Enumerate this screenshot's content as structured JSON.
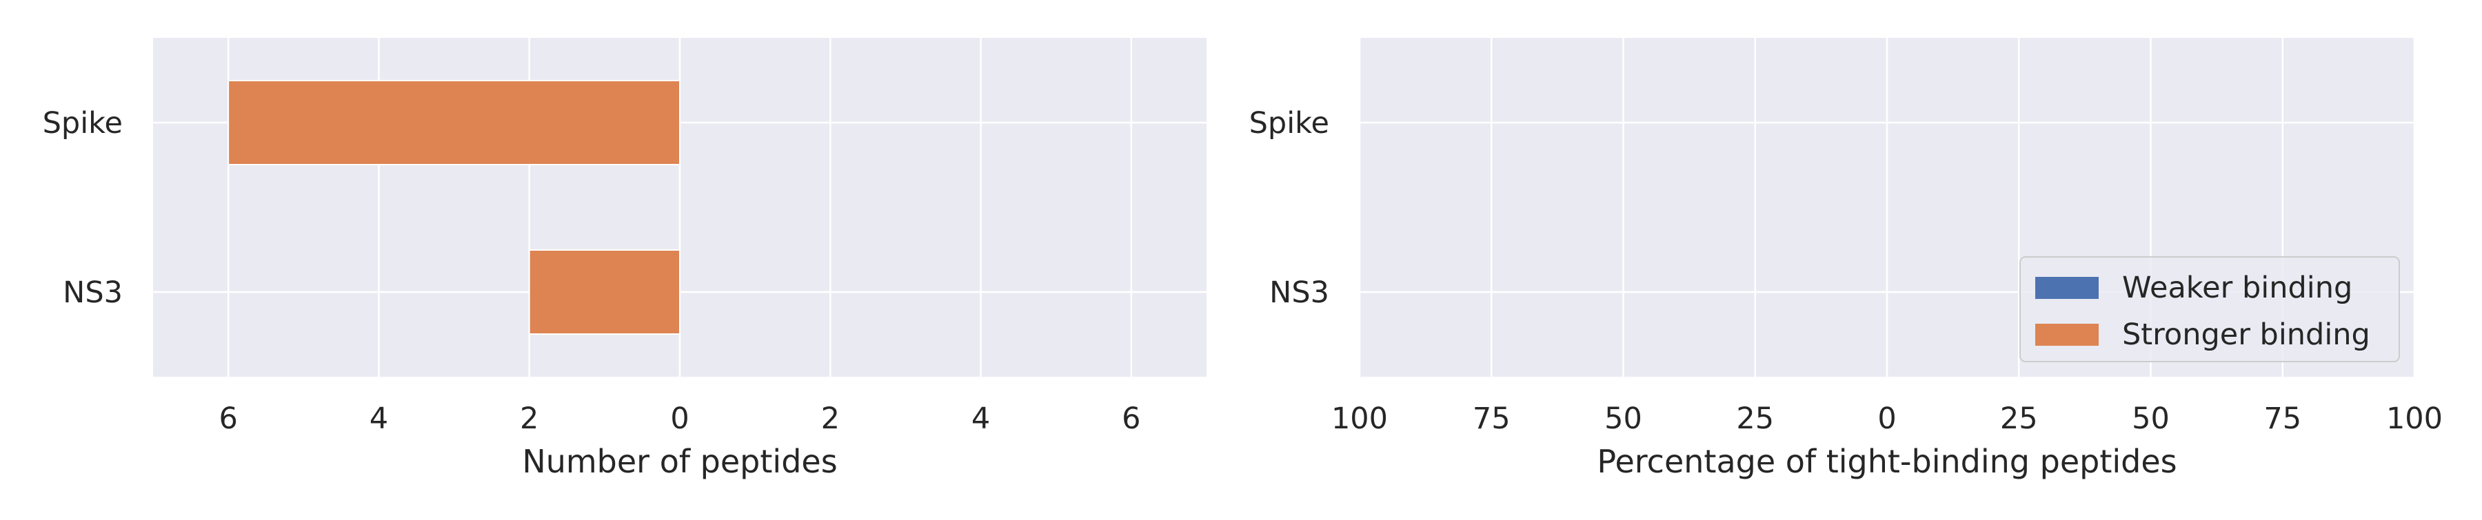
{
  "chart_data": [
    {
      "type": "bar",
      "orientation": "horizontal",
      "categories": [
        "Spike",
        "NS3"
      ],
      "series": [
        {
          "name": "Weaker binding",
          "color": "#4c72b0",
          "values": [
            0,
            0
          ]
        },
        {
          "name": "Stronger binding",
          "color": "#dd8452",
          "values": [
            -6,
            -2
          ]
        }
      ],
      "xlim": [
        -7,
        7
      ],
      "xticks": [
        -6,
        -4,
        -2,
        0,
        2,
        4,
        6
      ],
      "xtick_labels": [
        "6",
        "4",
        "2",
        "0",
        "2",
        "4",
        "6"
      ],
      "xlabel": "Number of peptides",
      "grid": true
    },
    {
      "type": "bar",
      "orientation": "horizontal",
      "categories": [
        "Spike",
        "NS3"
      ],
      "series": [
        {
          "name": "Weaker binding",
          "color": "#4c72b0",
          "values": [
            0,
            0
          ]
        },
        {
          "name": "Stronger binding",
          "color": "#dd8452",
          "values": [
            0,
            0
          ]
        }
      ],
      "xlim": [
        -100,
        100
      ],
      "xticks": [
        -100,
        -75,
        -50,
        -25,
        0,
        25,
        50,
        75,
        100
      ],
      "xtick_labels": [
        "100",
        "75",
        "50",
        "25",
        "0",
        "25",
        "50",
        "75",
        "100"
      ],
      "xlabel": "Percentage of tight-binding peptides",
      "legend": {
        "position": "lower-right",
        "entries": [
          "Weaker binding",
          "Stronger binding"
        ]
      },
      "grid": true
    }
  ],
  "style": {
    "plot_background": "#eaeaf2",
    "grid_color": "#ffffff"
  }
}
